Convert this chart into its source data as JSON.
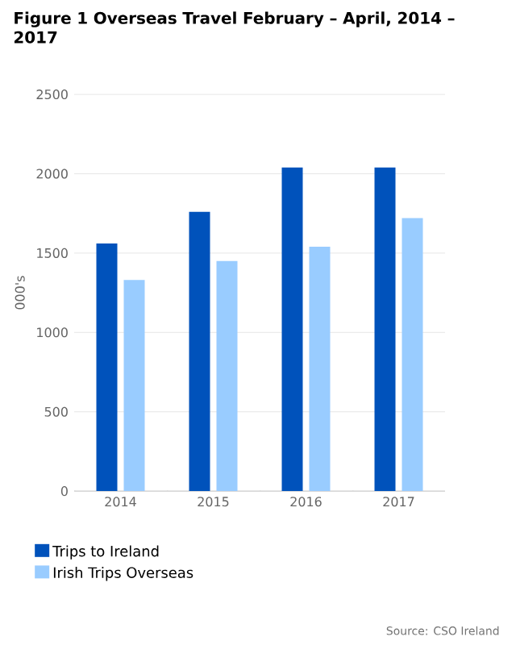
{
  "chart_data": {
    "type": "bar",
    "title": "Figure 1 Overseas Travel February – April, 2014 – 2017",
    "ylabel": "000's",
    "categories": [
      "2014",
      "2015",
      "2016",
      "2017"
    ],
    "series": [
      {
        "name": "Trips to Ireland",
        "color": "#0052bb",
        "values": [
          1560,
          1760,
          2040,
          2040
        ]
      },
      {
        "name": "Irish Trips Overseas",
        "color": "#99ccff",
        "values": [
          1330,
          1450,
          1540,
          1720
        ]
      }
    ],
    "ylim": [
      0,
      2500
    ],
    "yticks": [
      0,
      500,
      1000,
      1500,
      2000,
      2500
    ],
    "grid": "y",
    "legend": "bottom",
    "annotations": [
      "Source: CSO Ireland"
    ]
  }
}
